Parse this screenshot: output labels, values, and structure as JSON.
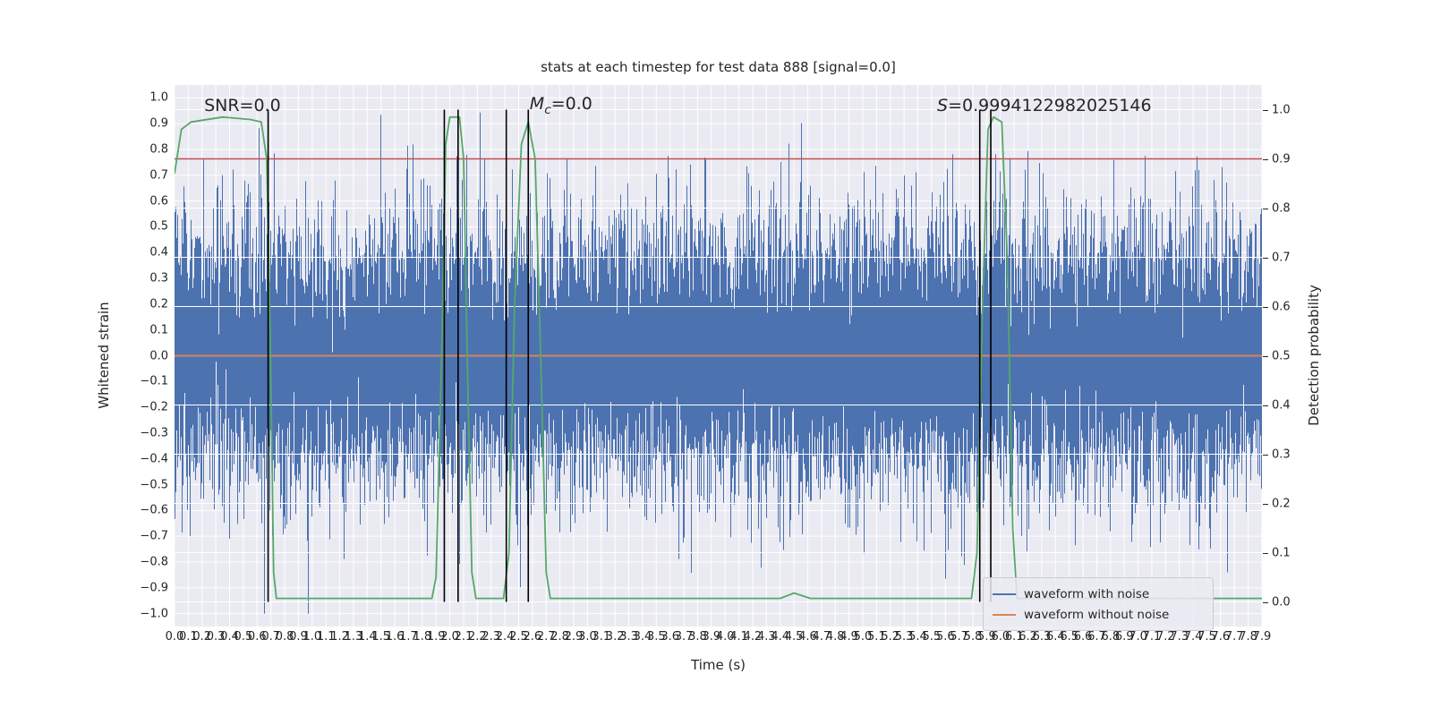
{
  "chart_data": {
    "type": "line",
    "title": "stats at each timestep for test data 888 [signal=0.0]",
    "xlabel": "Time (s)",
    "ylabel_left": "Whitened strain",
    "ylabel_right": "Detection probability",
    "xlim": [
      0.0,
      7.9
    ],
    "ylim_left": [
      -1.05,
      1.05
    ],
    "ylim_right": [
      -0.05,
      1.05
    ],
    "grid": true,
    "plot_background": "#eaeaf2",
    "grid_color": "#ffffff",
    "x_ticks": [
      "0.0",
      "0.1",
      "0.2",
      "0.3",
      "0.4",
      "0.5",
      "0.6",
      "0.7",
      "0.8",
      "0.9",
      "1.0",
      "1.1",
      "1.2",
      "1.3",
      "1.4",
      "1.5",
      "1.6",
      "1.7",
      "1.8",
      "1.9",
      "2.0",
      "2.1",
      "2.2",
      "2.3",
      "2.4",
      "2.5",
      "2.6",
      "2.7",
      "2.8",
      "2.9",
      "3.0",
      "3.1",
      "3.2",
      "3.3",
      "3.4",
      "3.5",
      "3.6",
      "3.7",
      "3.8",
      "3.9",
      "4.0",
      "4.1",
      "4.2",
      "4.3",
      "4.4",
      "4.5",
      "4.6",
      "4.7",
      "4.8",
      "4.9",
      "5.0",
      "5.1",
      "5.2",
      "5.3",
      "5.4",
      "5.5",
      "5.6",
      "5.7",
      "5.8",
      "5.9",
      "6.0",
      "6.1",
      "6.2",
      "6.3",
      "6.4",
      "6.5",
      "6.6",
      "6.7",
      "6.8",
      "6.9",
      "7.0",
      "7.1",
      "7.2",
      "7.3",
      "7.4",
      "7.5",
      "7.6",
      "7.7",
      "7.8",
      "7.9"
    ],
    "y_ticks_left": [
      "1.0",
      "0.9",
      "0.8",
      "0.7",
      "0.6",
      "0.5",
      "0.4",
      "0.3",
      "0.2",
      "0.1",
      "0.0",
      "−0.1",
      "−0.2",
      "−0.3",
      "−0.4",
      "−0.5",
      "−0.6",
      "−0.7",
      "−0.8",
      "−0.9",
      "−1.0"
    ],
    "y_ticks_right": [
      "1.0",
      "0.9",
      "0.8",
      "0.7",
      "0.6",
      "0.5",
      "0.4",
      "0.3",
      "0.2",
      "0.1",
      "0.0"
    ],
    "series": [
      {
        "name": "waveform with noise",
        "type": "noise",
        "axis": "left",
        "color": "#4c72b0",
        "mean": 0.0,
        "sigma": 0.25,
        "clip": 1.0,
        "samples_per_column": 13,
        "seed": 888
      },
      {
        "name": "waveform without noise",
        "type": "constant",
        "axis": "left",
        "color": "#dd8452",
        "value": 0.0
      },
      {
        "name": "detection probability",
        "type": "curve",
        "axis": "right",
        "color": "#55a868",
        "points": [
          [
            0.0,
            0.87
          ],
          [
            0.05,
            0.96
          ],
          [
            0.12,
            0.975
          ],
          [
            0.35,
            0.985
          ],
          [
            0.55,
            0.98
          ],
          [
            0.63,
            0.975
          ],
          [
            0.67,
            0.9
          ],
          [
            0.695,
            0.55
          ],
          [
            0.72,
            0.06
          ],
          [
            0.74,
            0.007
          ],
          [
            1.87,
            0.007
          ],
          [
            1.9,
            0.05
          ],
          [
            1.945,
            0.55
          ],
          [
            1.97,
            0.93
          ],
          [
            2.0,
            0.985
          ],
          [
            2.07,
            0.985
          ],
          [
            2.1,
            0.9
          ],
          [
            2.13,
            0.45
          ],
          [
            2.16,
            0.06
          ],
          [
            2.19,
            0.007
          ],
          [
            2.39,
            0.007
          ],
          [
            2.43,
            0.1
          ],
          [
            2.47,
            0.6
          ],
          [
            2.52,
            0.93
          ],
          [
            2.57,
            0.975
          ],
          [
            2.62,
            0.9
          ],
          [
            2.66,
            0.5
          ],
          [
            2.7,
            0.06
          ],
          [
            2.73,
            0.007
          ],
          [
            4.4,
            0.007
          ],
          [
            4.5,
            0.018
          ],
          [
            4.62,
            0.007
          ],
          [
            5.79,
            0.007
          ],
          [
            5.83,
            0.1
          ],
          [
            5.87,
            0.6
          ],
          [
            5.91,
            0.96
          ],
          [
            5.95,
            0.985
          ],
          [
            6.01,
            0.975
          ],
          [
            6.05,
            0.7
          ],
          [
            6.09,
            0.15
          ],
          [
            6.12,
            0.007
          ],
          [
            7.9,
            0.007
          ]
        ]
      },
      {
        "name": "detection threshold",
        "type": "hline",
        "axis": "right",
        "color": "#c44e52",
        "value": 0.9
      },
      {
        "name": "event markers",
        "type": "vlines",
        "axis": "right",
        "color": "#000000",
        "x": [
          0.68,
          1.96,
          2.06,
          2.41,
          2.57,
          5.85,
          5.93
        ],
        "span": [
          0.0,
          1.0
        ]
      }
    ],
    "annotations": [
      {
        "name": "snr",
        "x": 0.215,
        "y": 0.97,
        "parts": [
          {
            "text": "SNR=0.0",
            "italic": false
          }
        ]
      },
      {
        "name": "chirp-mass",
        "x": 2.58,
        "y": 0.97,
        "parts": [
          {
            "text": "M",
            "italic": true
          },
          {
            "text": "c",
            "italic": true,
            "sub": true
          },
          {
            "text": "=0.0",
            "italic": false
          }
        ]
      },
      {
        "name": "score",
        "x": 5.54,
        "y": 0.97,
        "parts": [
          {
            "text": "S",
            "italic": true
          },
          {
            "text": "=0.9994122982025146",
            "italic": false
          }
        ]
      }
    ],
    "legend": {
      "position": "lower right",
      "items": [
        {
          "label": "waveform with noise",
          "color": "#4c72b0"
        },
        {
          "label": "waveform without noise",
          "color": "#dd8452"
        }
      ]
    }
  }
}
